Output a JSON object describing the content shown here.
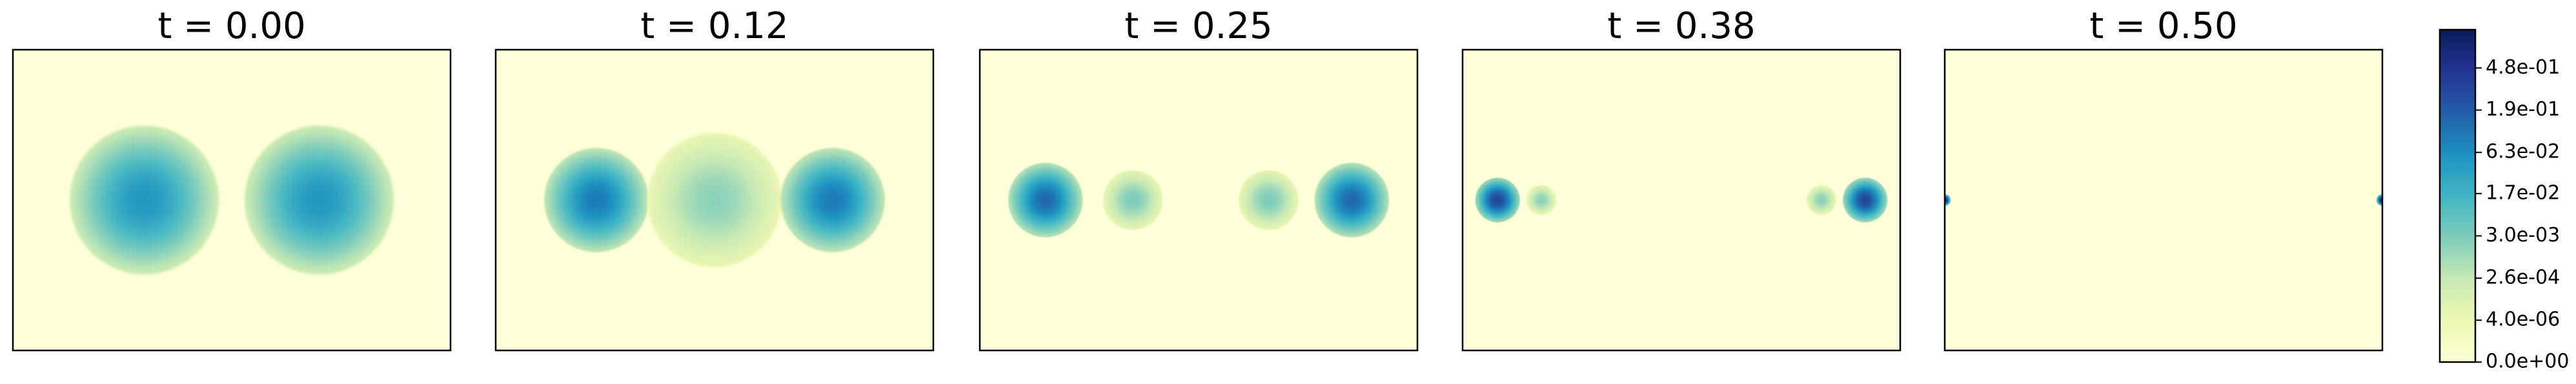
{
  "chart_data": {
    "type": "heatmap",
    "xlim": [
      0,
      1
    ],
    "ylim": [
      0,
      1
    ],
    "panels": [
      {
        "title": "t = 0.00",
        "blobs": [
          {
            "x": 0.3,
            "y": 0.5,
            "sigma": 0.05,
            "peak": 0.05
          },
          {
            "x": 0.7,
            "y": 0.5,
            "sigma": 0.05,
            "peak": 0.05
          }
        ]
      },
      {
        "title": "t = 0.12",
        "blobs": [
          {
            "x": 0.23,
            "y": 0.5,
            "sigma": 0.035,
            "peak": 0.1
          },
          {
            "x": 0.5,
            "y": 0.5,
            "sigma": 0.045,
            "peak": 0.002
          },
          {
            "x": 0.77,
            "y": 0.5,
            "sigma": 0.035,
            "peak": 0.1
          }
        ]
      },
      {
        "title": "t = 0.25",
        "blobs": [
          {
            "x": 0.15,
            "y": 0.5,
            "sigma": 0.025,
            "peak": 0.15
          },
          {
            "x": 0.35,
            "y": 0.5,
            "sigma": 0.02,
            "peak": 0.003
          },
          {
            "x": 0.66,
            "y": 0.5,
            "sigma": 0.02,
            "peak": 0.003
          },
          {
            "x": 0.85,
            "y": 0.5,
            "sigma": 0.025,
            "peak": 0.15
          }
        ]
      },
      {
        "title": "t = 0.38",
        "blobs": [
          {
            "x": 0.08,
            "y": 0.5,
            "sigma": 0.015,
            "peak": 0.3
          },
          {
            "x": 0.18,
            "y": 0.5,
            "sigma": 0.01,
            "peak": 0.002
          },
          {
            "x": 0.82,
            "y": 0.5,
            "sigma": 0.01,
            "peak": 0.002
          },
          {
            "x": 0.92,
            "y": 0.5,
            "sigma": 0.015,
            "peak": 0.3
          }
        ]
      },
      {
        "title": "t = 0.50",
        "blobs": [
          {
            "x": 0.0,
            "y": 0.5,
            "sigma": 0.004,
            "peak": 0.9
          },
          {
            "x": 1.0,
            "y": 0.5,
            "sigma": 0.004,
            "peak": 0.9
          }
        ]
      }
    ],
    "colorbar": {
      "colors": [
        "#ffffd9",
        "#edf8b1",
        "#c7e9b4",
        "#7fcdbb",
        "#41b6c4",
        "#1d91c0",
        "#225ea8",
        "#253494",
        "#081d58"
      ],
      "lim": [
        0,
        1
      ],
      "gamma": 0.1667,
      "ticks": [
        {
          "value": 0,
          "label": "0.0e+00"
        },
        {
          "value": 4e-06,
          "label": "4.0e-06"
        },
        {
          "value": 0.00026,
          "label": "2.6e-04"
        },
        {
          "value": 0.003,
          "label": "3.0e-03"
        },
        {
          "value": 0.017,
          "label": "1.7e-02"
        },
        {
          "value": 0.063,
          "label": "6.3e-02"
        },
        {
          "value": 0.19,
          "label": "1.9e-01"
        },
        {
          "value": 0.48,
          "label": "4.8e-01"
        }
      ]
    }
  }
}
